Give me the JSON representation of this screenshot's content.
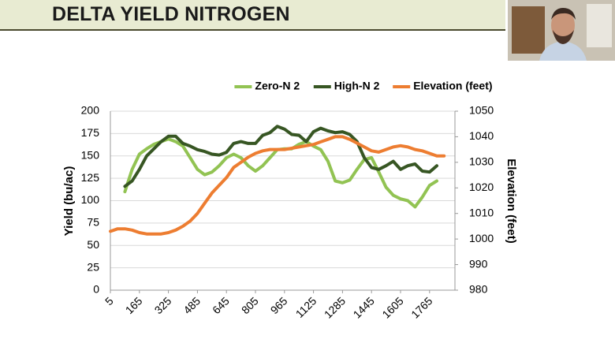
{
  "chart_data": {
    "type": "line",
    "title": "DELTA YIELD NITROGEN",
    "ylabel": "Yield (bu/ac)",
    "y2label": "Elevation (feet)",
    "x": [
      5,
      45,
      85,
      125,
      165,
      205,
      245,
      285,
      325,
      365,
      405,
      445,
      485,
      525,
      565,
      605,
      645,
      685,
      725,
      765,
      805,
      845,
      885,
      925,
      965,
      1005,
      1045,
      1085,
      1125,
      1165,
      1205,
      1245,
      1285,
      1325,
      1365,
      1405,
      1445,
      1485,
      1525,
      1565,
      1605,
      1645,
      1685,
      1725,
      1765,
      1805,
      1845
    ],
    "xlim": [
      5,
      1905
    ],
    "xticks": [
      5,
      165,
      325,
      485,
      645,
      805,
      965,
      1125,
      1285,
      1445,
      1605,
      1765
    ],
    "ylim": [
      0,
      200
    ],
    "yticks": [
      0,
      25,
      50,
      75,
      100,
      125,
      150,
      175,
      200
    ],
    "y2lim": [
      980,
      1050
    ],
    "y2ticks": [
      980,
      990,
      1000,
      1010,
      1020,
      1030,
      1040,
      1050
    ],
    "grid": true,
    "legend": "top-right",
    "series": [
      {
        "name": "Zero-N 2",
        "color": "#92c353",
        "values": [
          null,
          null,
          110,
          135,
          152,
          158,
          163,
          166,
          169,
          166,
          161,
          148,
          135,
          129,
          132,
          139,
          148,
          152,
          148,
          139,
          133,
          139,
          148,
          157,
          158,
          158,
          163,
          166,
          161,
          157,
          144,
          122,
          120,
          123,
          135,
          146,
          148,
          132,
          115,
          106,
          102,
          100,
          93,
          104,
          117,
          122,
          null
        ]
      },
      {
        "name": "High-N 2",
        "color": "#375623",
        "values": [
          null,
          null,
          116,
          122,
          135,
          150,
          158,
          166,
          172,
          172,
          164,
          161,
          157,
          155,
          152,
          151,
          154,
          164,
          166,
          164,
          164,
          173,
          176,
          183,
          180,
          174,
          173,
          166,
          177,
          181,
          178,
          176,
          177,
          174,
          166,
          148,
          137,
          135,
          139,
          144,
          135,
          139,
          141,
          133,
          132,
          139,
          null
        ]
      },
      {
        "name": "Elevation (feet)",
        "color": "#ed7d31",
        "axis": "y2",
        "values": [
          1003,
          1004,
          1004,
          1003.5,
          1002.5,
          1002,
          1002,
          1002,
          1002.5,
          1003.5,
          1005,
          1007,
          1010,
          1014,
          1018,
          1021,
          1024,
          1028,
          1030,
          1032,
          1033.5,
          1034.5,
          1035,
          1035,
          1035,
          1035.5,
          1036,
          1036.5,
          1037,
          1038,
          1039,
          1040,
          1040,
          1039,
          1037.5,
          1036,
          1034.5,
          1034,
          1035,
          1036,
          1036.5,
          1036,
          1035,
          1034.5,
          1033.5,
          1032.5,
          1032.5
        ]
      }
    ]
  }
}
